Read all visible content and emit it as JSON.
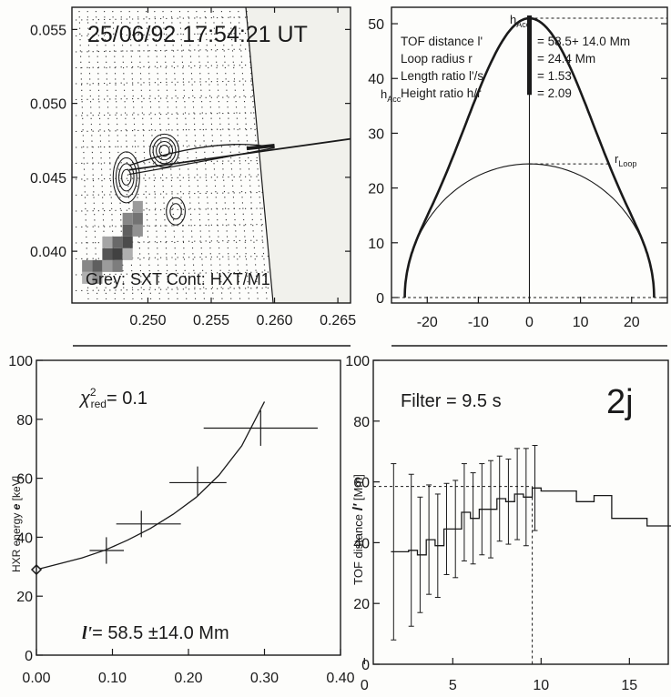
{
  "colors": {
    "ink": "#1a1a1a",
    "paper": "#fdfdfb",
    "grey_pixel": "#3a3a3a"
  },
  "chart_data": [
    {
      "id": "panel_a",
      "type": "heatmap",
      "title": "25/06/92   17:54:21 UT",
      "legend_text": "Grey: SXT  Cont: HXT/M1",
      "xlim": [
        0.244,
        0.266
      ],
      "ylim": [
        0.0365,
        0.0565
      ],
      "x_ticks": [
        "0.250",
        "0.255",
        "0.260",
        "0.265"
      ],
      "x_tick_values": [
        0.25,
        0.255,
        0.26,
        0.265
      ],
      "y_ticks": [
        "0.055",
        "0.050",
        "0.045",
        "0.040"
      ],
      "y_tick_values": [
        0.055,
        0.05,
        0.045,
        0.04
      ],
      "sxt_pixels": [
        {
          "x": 0.2452,
          "y": 0.039,
          "v": 0.55
        },
        {
          "x": 0.246,
          "y": 0.039,
          "v": 0.75
        },
        {
          "x": 0.2468,
          "y": 0.039,
          "v": 0.45
        },
        {
          "x": 0.2452,
          "y": 0.0382,
          "v": 0.35
        },
        {
          "x": 0.246,
          "y": 0.0382,
          "v": 0.5
        },
        {
          "x": 0.2468,
          "y": 0.0398,
          "v": 0.8
        },
        {
          "x": 0.2476,
          "y": 0.0398,
          "v": 0.9
        },
        {
          "x": 0.2476,
          "y": 0.039,
          "v": 0.6
        },
        {
          "x": 0.2476,
          "y": 0.0406,
          "v": 0.7
        },
        {
          "x": 0.2484,
          "y": 0.0406,
          "v": 0.85
        },
        {
          "x": 0.2484,
          "y": 0.0414,
          "v": 0.75
        },
        {
          "x": 0.2492,
          "y": 0.0414,
          "v": 0.5
        },
        {
          "x": 0.2484,
          "y": 0.0422,
          "v": 0.55
        },
        {
          "x": 0.2492,
          "y": 0.0422,
          "v": 0.65
        },
        {
          "x": 0.2492,
          "y": 0.043,
          "v": 0.45
        },
        {
          "x": 0.2468,
          "y": 0.0406,
          "v": 0.4
        },
        {
          "x": 0.2484,
          "y": 0.0398,
          "v": 0.35
        }
      ],
      "contour_sources": [
        {
          "x": 0.2483,
          "y": 0.045,
          "rx": 0.0009,
          "ry": 0.0016,
          "levels": 4
        },
        {
          "x": 0.2513,
          "y": 0.0468,
          "rx": 0.001,
          "ry": 0.001,
          "levels": 4
        },
        {
          "x": 0.2522,
          "y": 0.0427,
          "rx": 0.0006,
          "ry": 0.0008,
          "levels": 2
        }
      ],
      "loop_line": [
        [
          0.2485,
          0.0455
        ],
        [
          0.266,
          0.0476
        ]
      ]
    },
    {
      "id": "panel_b",
      "type": "line",
      "xlim": [
        -27,
        27
      ],
      "ylim": [
        -1,
        53
      ],
      "x_ticks": [
        "-20",
        "-10",
        "0",
        "10",
        "20"
      ],
      "x_tick_values": [
        -20,
        -10,
        0,
        10,
        20
      ],
      "y_ticks": [
        "0",
        "10",
        "20",
        "30",
        "40",
        "50"
      ],
      "y_tick_values": [
        0,
        10,
        20,
        30,
        40,
        50
      ],
      "loop_radius": 24.4,
      "height": 51,
      "annotations": {
        "rows": [
          [
            "TOF distance l'",
            "= 58.5+ 14.0 Mm"
          ],
          [
            "Loop radius r",
            "= 24.4 Mm"
          ],
          [
            "Length ratio l'/s",
            "= 1.53"
          ],
          [
            "Height ratio h/r",
            "= 2.09"
          ]
        ],
        "h_acc": "h",
        "h_acc_sub": "Acc",
        "r_loop": "r",
        "r_loop_sub": "Loop"
      }
    },
    {
      "id": "panel_c",
      "type": "scatter",
      "xlim": [
        0,
        0.4
      ],
      "ylim": [
        0,
        100
      ],
      "x_ticks": [
        "0.00",
        "0.10",
        "0.20",
        "0.30",
        "0.40"
      ],
      "x_tick_values": [
        0,
        0.1,
        0.2,
        0.3,
        0.4
      ],
      "y_ticks": [
        "0",
        "20",
        "40",
        "60",
        "80",
        "100"
      ],
      "y_tick_values": [
        0,
        20,
        40,
        60,
        80,
        100
      ],
      "ylabel": "HXR energy",
      "ylabel_var": "e",
      "ylabel_unit": "[keV]",
      "chi_label": "χ",
      "chi_sup": "2",
      "chi_sub": "red",
      "chi_value": "= 0.1",
      "lprime_label": "l'",
      "lprime_value": "=  58.5 ±14.0 Mm",
      "points": [
        {
          "x": 0.092,
          "y": 35.5,
          "xlo": 0.07,
          "xhi": 0.115,
          "ylo": 31,
          "yhi": 40
        },
        {
          "x": 0.138,
          "y": 44.5,
          "xlo": 0.105,
          "xhi": 0.19,
          "ylo": 40,
          "yhi": 49
        },
        {
          "x": 0.212,
          "y": 58.5,
          "xlo": 0.175,
          "xhi": 0.25,
          "ylo": 54,
          "yhi": 64
        },
        {
          "x": 0.295,
          "y": 77,
          "xlo": 0.22,
          "xhi": 0.37,
          "ylo": 71,
          "yhi": 83
        }
      ],
      "fit_curve": {
        "x": [
          0,
          0.03,
          0.06,
          0.09,
          0.12,
          0.15,
          0.18,
          0.21,
          0.24,
          0.27,
          0.3
        ],
        "y": [
          29,
          31,
          33,
          35.6,
          39,
          43,
          47.8,
          53.5,
          61,
          71,
          86
        ]
      },
      "diamond": {
        "x": 0.0,
        "y": 29
      }
    },
    {
      "id": "panel_d",
      "type": "line",
      "label": "2j",
      "filter_text": "Filter =  9.5 s",
      "xlim": [
        0.5,
        17.2
      ],
      "ylim": [
        0,
        100
      ],
      "x_ticks": [
        "0",
        "5",
        "10",
        "15"
      ],
      "x_tick_values": [
        0,
        5,
        10,
        15
      ],
      "y_ticks": [
        "0",
        "20",
        "40",
        "60",
        "80",
        "100"
      ],
      "y_tick_values": [
        0,
        20,
        40,
        60,
        80,
        100
      ],
      "ylabel": "TOF distance",
      "ylabel_var": "l'",
      "ylabel_unit": "[Mm]",
      "marker": {
        "x": 9.5,
        "y": 58.5
      },
      "x": [
        1.5,
        2.5,
        3.0,
        3.5,
        4.0,
        4.5,
        5.0,
        5.5,
        6.0,
        6.5,
        7.0,
        7.5,
        8.0,
        8.5,
        9.0,
        9.5,
        10.0,
        11.0,
        12.0,
        13.0,
        14.0,
        15.0,
        16.0,
        17.0
      ],
      "y": [
        37,
        37.5,
        36,
        41,
        39,
        44.5,
        44.5,
        50,
        48,
        51,
        51,
        54.5,
        53.5,
        56,
        55,
        58,
        57,
        57,
        53.5,
        55.5,
        48,
        48,
        45.5,
        45.5
      ],
      "err": [
        29,
        25,
        19,
        18,
        17,
        15,
        16,
        16,
        15,
        15,
        16,
        14,
        14,
        15,
        16,
        14,
        0,
        0,
        0,
        0,
        0,
        0,
        0,
        0
      ]
    }
  ]
}
